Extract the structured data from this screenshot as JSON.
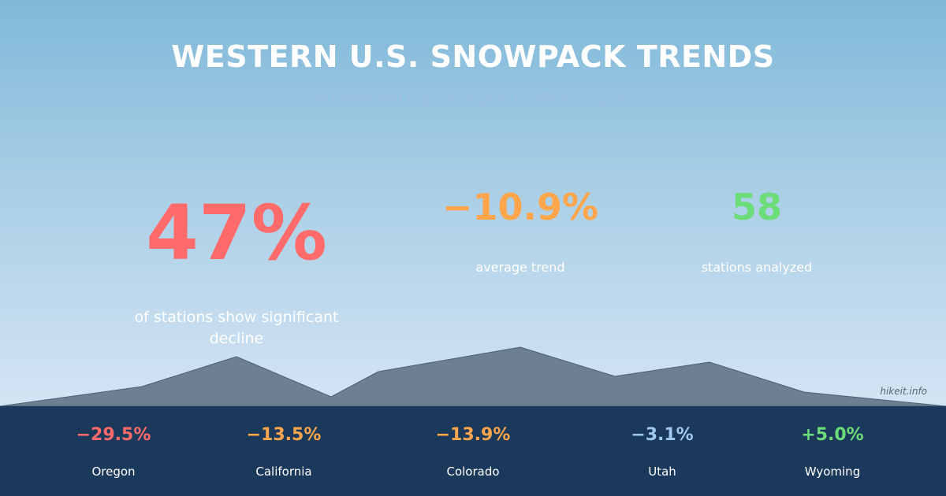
{
  "title": "WESTERN U.S. SNOWPACK TRENDS",
  "subtitle": "40-Year SNOTEL Analysis (1980s–2020s)",
  "headline": {
    "value": "47%",
    "label": "of stations show significant decline",
    "color": "#ff6b6b"
  },
  "stats": [
    {
      "value": "−10.9%",
      "label": "average trend",
      "color": "#ffa64d"
    },
    {
      "value": "58",
      "label": "stations analyzed",
      "color": "#6ddc7a"
    }
  ],
  "states": [
    {
      "value": "−29.5%",
      "name": "Oregon",
      "color": "#ff6b6b"
    },
    {
      "value": "−13.5%",
      "name": "California",
      "color": "#ffa64d"
    },
    {
      "value": "−13.9%",
      "name": "Colorado",
      "color": "#ffa64d"
    },
    {
      "value": "−3.1%",
      "name": "Utah",
      "color": "#9fc8ef"
    },
    {
      "value": "+5.0%",
      "name": "Wyoming",
      "color": "#6ddc7a"
    }
  ],
  "credit": "hikeit.info"
}
